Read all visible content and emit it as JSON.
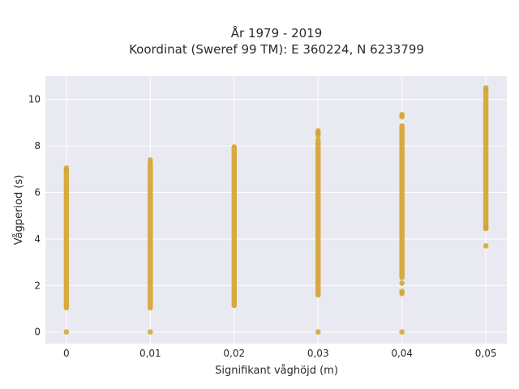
{
  "chart_data": {
    "type": "scatter",
    "title_line1": "År 1979 - 2019",
    "title_line2": "Koordinat (Sweref 99 TM): E 360224, N 6233799",
    "xlabel": "Signifikant våghöjd (m)",
    "ylabel": "Vågperiod (s)",
    "xlim": [
      -0.0025,
      0.0525
    ],
    "ylim": [
      -0.5,
      11.0
    ],
    "x_ticks": [
      0,
      0.01,
      0.02,
      0.03,
      0.04,
      0.05
    ],
    "x_tick_labels": [
      "0",
      "0,01",
      "0,02",
      "0,03",
      "0,04",
      "0,05"
    ],
    "y_ticks": [
      0,
      2,
      4,
      6,
      8,
      10
    ],
    "y_tick_labels": [
      "0",
      "2",
      "4",
      "6",
      "8",
      "10"
    ],
    "grid": true,
    "marker_color": "#d4a32a",
    "background_color": "#e9e9f1",
    "series": [
      {
        "x": 0,
        "ranges": [
          [
            1.0,
            6.9
          ]
        ],
        "points": [
          0,
          7.05,
          6.95
        ]
      },
      {
        "x": 0.01,
        "ranges": [
          [
            1.0,
            7.3
          ]
        ],
        "points": [
          0,
          7.4
        ]
      },
      {
        "x": 0.02,
        "ranges": [
          [
            1.1,
            8.0
          ]
        ],
        "points": []
      },
      {
        "x": 0.03,
        "ranges": [
          [
            1.55,
            8.3
          ]
        ],
        "points": [
          0,
          8.45,
          8.55,
          8.65
        ]
      },
      {
        "x": 0.04,
        "ranges": [
          [
            2.3,
            8.9
          ]
        ],
        "points": [
          0,
          1.65,
          1.75,
          2.1,
          9.25,
          9.35
        ]
      },
      {
        "x": 0.05,
        "ranges": [
          [
            4.4,
            10.45
          ]
        ],
        "points": [
          3.7,
          4.5,
          10.5
        ]
      }
    ]
  }
}
